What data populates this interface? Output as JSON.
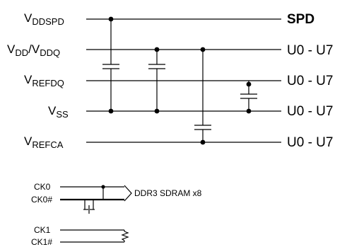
{
  "nets": {
    "vddspd": {
      "main": "V",
      "sub": "DDSPD"
    },
    "vdd": {
      "main1": "V",
      "sub1": "DD",
      "slash": "/V",
      "sub2": "DDQ"
    },
    "vrefdq": {
      "main": "V",
      "sub": "REFDQ"
    },
    "vss": {
      "main": "V",
      "sub": "SS"
    },
    "vrefca": {
      "main": "V",
      "sub": "REFCA"
    }
  },
  "destinations": {
    "vddspd": "SPD",
    "vdd": "U0 - U7",
    "vrefdq": "U0 - U7",
    "vss": "U0 - U7",
    "vrefca": "U0 - U7"
  },
  "clock": {
    "ck0": "CK0",
    "ck0n": "CK0#",
    "target": "DDR3 SDRAM x8",
    "ck1": "CK1",
    "ck1n": "CK1#"
  }
}
